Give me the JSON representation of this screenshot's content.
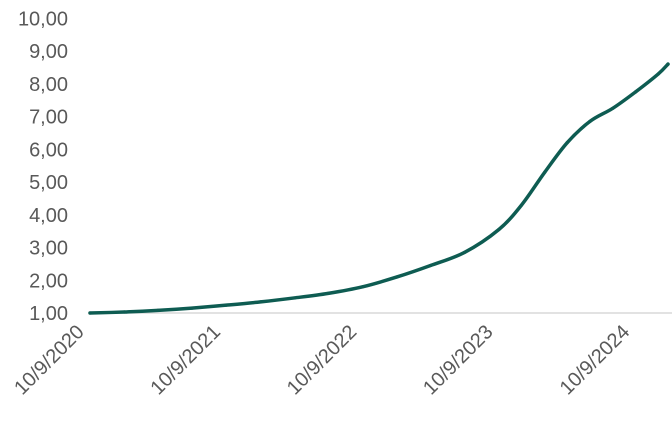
{
  "chart_data": {
    "type": "line",
    "title": "",
    "xlabel": "",
    "ylabel": "",
    "x_tick_labels": [
      "10/9/2020",
      "10/9/2021",
      "10/9/2022",
      "10/9/2023",
      "10/9/2024"
    ],
    "y_tick_labels": [
      "1,00",
      "2,00",
      "3,00",
      "4,00",
      "5,00",
      "6,00",
      "7,00",
      "8,00",
      "9,00",
      "10,00"
    ],
    "ylim": [
      1,
      10
    ],
    "xlim": [
      "2020-10-09",
      "2025-01-04"
    ],
    "grid": false,
    "legend": "none",
    "series": [
      {
        "color": "#0E5C52",
        "points": [
          [
            "2020-10-09",
            1.0
          ],
          [
            "2021-01-09",
            1.03
          ],
          [
            "2021-04-09",
            1.08
          ],
          [
            "2021-07-09",
            1.15
          ],
          [
            "2021-10-09",
            1.24
          ],
          [
            "2022-01-09",
            1.34
          ],
          [
            "2022-04-09",
            1.46
          ],
          [
            "2022-07-09",
            1.6
          ],
          [
            "2022-10-09",
            1.8
          ],
          [
            "2023-01-09",
            2.1
          ],
          [
            "2023-04-09",
            2.45
          ],
          [
            "2023-07-09",
            2.85
          ],
          [
            "2023-10-09",
            3.55
          ],
          [
            "2023-12-09",
            4.3
          ],
          [
            "2024-02-09",
            5.3
          ],
          [
            "2024-04-09",
            6.2
          ],
          [
            "2024-06-09",
            6.85
          ],
          [
            "2024-08-09",
            7.25
          ],
          [
            "2024-10-09",
            7.75
          ],
          [
            "2024-12-09",
            8.3
          ],
          [
            "2025-01-04",
            8.6
          ]
        ]
      }
    ]
  },
  "colors": {
    "line": "#0E5C52",
    "axis": "#D9D9D9",
    "label": "#595959"
  }
}
